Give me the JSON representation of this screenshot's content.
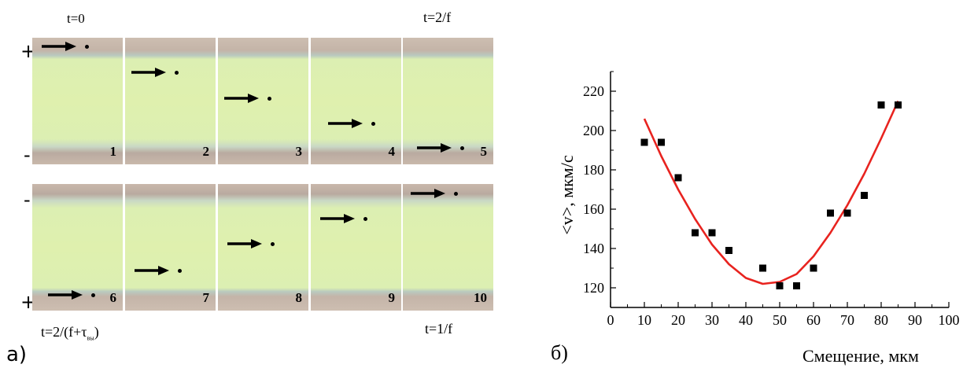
{
  "panel_a": {
    "label": "а)",
    "t_top_left": "t=0",
    "t_top_right": "t=2/f",
    "t_bottom_left": "t=2/(f+τ",
    "t_bottom_left_sub": "вы",
    "t_bottom_left_close": ")",
    "t_bottom_right": "t=1/f",
    "sign_row1_top": "+",
    "sign_row1_bottom": "-",
    "sign_row2_top": "-",
    "sign_row2_bottom": "+",
    "frames": [
      "1",
      "2",
      "3",
      "4",
      "5",
      "6",
      "7",
      "8",
      "9",
      "10"
    ]
  },
  "panel_b": {
    "label": "б)"
  },
  "chart_data": {
    "type": "scatter",
    "xlabel": "Смещение, мкм",
    "ylabel": "<v>, мкм/с",
    "xlim": [
      0,
      100
    ],
    "ylim": [
      110,
      230
    ],
    "xticks": [
      0,
      10,
      20,
      30,
      40,
      50,
      60,
      70,
      80,
      90,
      100
    ],
    "yticks": [
      120,
      140,
      160,
      180,
      200,
      220
    ],
    "series": [
      {
        "kind": "points",
        "color": "#000000",
        "x": [
          10,
          15,
          20,
          25,
          30,
          35,
          45,
          50,
          55,
          60,
          65,
          70,
          75,
          80,
          85
        ],
        "y": [
          194,
          194,
          176,
          148,
          148,
          139,
          130,
          121,
          121,
          130,
          158,
          158,
          167,
          213,
          213
        ]
      },
      {
        "kind": "fit",
        "color": "#e8231f",
        "x": [
          10,
          15,
          20,
          25,
          30,
          35,
          40,
          45,
          50,
          55,
          60,
          65,
          70,
          75,
          80,
          85
        ],
        "y": [
          206,
          187,
          170,
          155,
          142,
          132,
          125,
          122,
          123,
          127,
          136,
          148,
          162,
          178,
          196,
          215
        ]
      }
    ],
    "grid": false
  }
}
